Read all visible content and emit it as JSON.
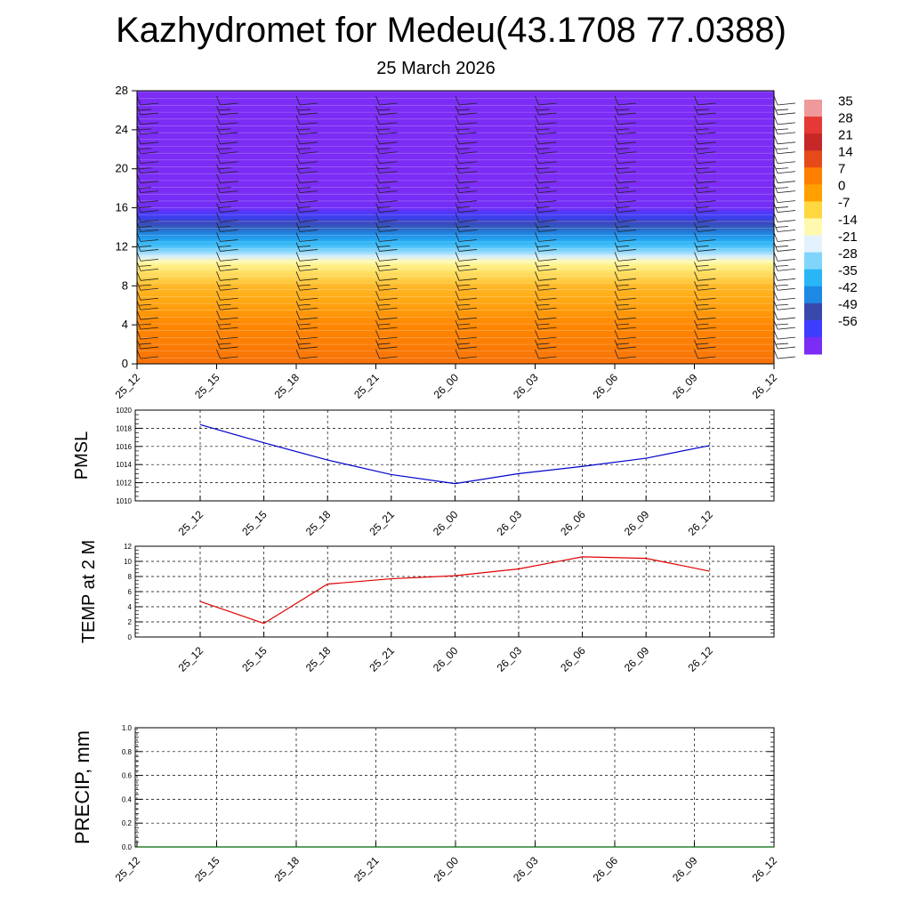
{
  "header": {
    "title": "Kazhydromet for Medeu(43.1708 77.0388)",
    "subtitle": "25 March 2026"
  },
  "chart_data": [
    {
      "type": "heatmap",
      "title": "",
      "xlabel": "",
      "ylabel": "",
      "x": [
        "25_12",
        "25_15",
        "25_18",
        "25_21",
        "26_00",
        "26_03",
        "26_06",
        "26_09",
        "26_12"
      ],
      "ylim": [
        0,
        28
      ],
      "yticks": [
        0,
        4,
        8,
        12,
        16,
        20,
        24,
        28
      ],
      "colorbar_labels": [
        "35",
        "28",
        "21",
        "14",
        "7",
        "0",
        "-7",
        "-14",
        "-21",
        "-28",
        "-35",
        "-42",
        "-49",
        "-56"
      ],
      "colorbar_colors": [
        "#ef9a9a",
        "#e53935",
        "#c62828",
        "#e64a19",
        "#ff7f00",
        "#ffa000",
        "#ffd740",
        "#fff9b0",
        "#e3f2fd",
        "#81d4fa",
        "#29b6f6",
        "#1e88e5",
        "#3949ab",
        "#3d3dff",
        "#7b2cf5"
      ],
      "vertical_profile_temperature": [
        {
          "level": 0,
          "value": 10
        },
        {
          "level": 4,
          "value": 8
        },
        {
          "level": 8,
          "value": 2
        },
        {
          "level": 10.5,
          "value": -10
        },
        {
          "level": 12,
          "value": -25
        },
        {
          "level": 14,
          "value": -40
        },
        {
          "level": 16,
          "value": -55
        },
        {
          "level": 18,
          "value": -56
        },
        {
          "level": 28,
          "value": -56
        }
      ],
      "wind_barbs": true
    },
    {
      "type": "line",
      "title": "",
      "ylabel": "PMSL",
      "xlabel": "",
      "x": [
        "25_12",
        "25_15",
        "25_18",
        "25_21",
        "26_00",
        "26_03",
        "26_06",
        "26_09",
        "26_12"
      ],
      "series": [
        {
          "values": [
            1018.4,
            1016.4,
            1014.5,
            1012.9,
            1011.9,
            1013.0,
            1013.8,
            1014.7,
            1016.1
          ],
          "color": "#0000cc"
        }
      ],
      "ylim": [
        1010,
        1020
      ],
      "yticks": [
        1010,
        1012,
        1014,
        1016,
        1018,
        1020
      ],
      "grid": true
    },
    {
      "type": "line",
      "title": "",
      "ylabel": "TEMP at 2 M",
      "xlabel": "",
      "x": [
        "25_12",
        "25_15",
        "25_18",
        "25_21",
        "26_00",
        "26_03",
        "26_06",
        "26_09",
        "26_12"
      ],
      "series": [
        {
          "values": [
            4.7,
            1.8,
            7.0,
            7.7,
            8.1,
            9.0,
            10.6,
            10.4,
            8.7
          ],
          "color": "#e00000"
        }
      ],
      "ylim": [
        0,
        12
      ],
      "yticks": [
        0,
        2,
        4,
        6,
        8,
        10,
        12
      ],
      "grid": true
    },
    {
      "type": "line",
      "title": "",
      "ylabel": "PRECIP, mm",
      "xlabel": "",
      "x": [
        "25_12",
        "25_15",
        "25_18",
        "25_21",
        "26_00",
        "26_03",
        "26_06",
        "26_09",
        "26_12"
      ],
      "series": [
        {
          "values": [
            0,
            0,
            0,
            0,
            0,
            0,
            0,
            0,
            0
          ],
          "color": "#006400"
        }
      ],
      "ylim": [
        0,
        1
      ],
      "yticks": [
        "0.0",
        "0.2",
        "0.4",
        "0.6",
        "0.8",
        "1.0"
      ],
      "grid": true
    }
  ]
}
